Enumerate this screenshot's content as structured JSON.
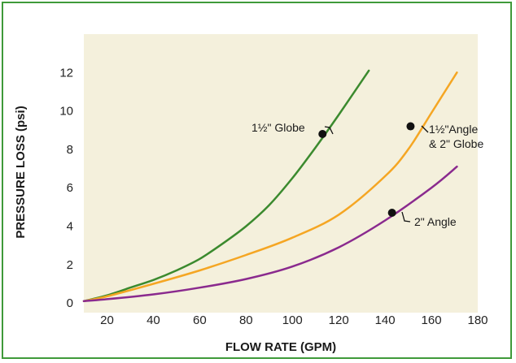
{
  "chart_data": {
    "type": "line",
    "title": "",
    "xlabel": "FLOW RATE (GPM)",
    "ylabel": "PRESSURE LOSS (psi)",
    "xlim": [
      10,
      180
    ],
    "ylim": [
      -0.5,
      14
    ],
    "xticks": [
      20,
      40,
      60,
      80,
      100,
      120,
      140,
      160,
      180
    ],
    "yticks": [
      0,
      2,
      4,
      6,
      8,
      10,
      12
    ],
    "grid": false,
    "background": "#f4f0dc",
    "series": [
      {
        "name": "1½\" Globe",
        "color": "#3b8a2e",
        "x": [
          10,
          20,
          30,
          40,
          50,
          60,
          70,
          80,
          90,
          100,
          110,
          120,
          133
        ],
        "y": [
          0.1,
          0.4,
          0.8,
          1.2,
          1.7,
          2.3,
          3.1,
          4.0,
          5.1,
          6.5,
          8.1,
          9.8,
          12.1
        ]
      },
      {
        "name": "1½\"Angle & 2\" Globe",
        "color": "#f5a623",
        "x": [
          10,
          20,
          40,
          60,
          80,
          100,
          120,
          140,
          150,
          160,
          171
        ],
        "y": [
          0.1,
          0.35,
          1.0,
          1.7,
          2.5,
          3.4,
          4.6,
          6.6,
          8.0,
          9.9,
          12.0
        ]
      },
      {
        "name": "2\" Angle",
        "color": "#8a2a8e",
        "x": [
          10,
          20,
          40,
          60,
          80,
          100,
          120,
          140,
          160,
          171
        ],
        "y": [
          0.1,
          0.2,
          0.45,
          0.8,
          1.25,
          1.9,
          2.9,
          4.3,
          6.0,
          7.1
        ]
      }
    ],
    "annotations": [
      {
        "lines": [
          "1½\" Globe"
        ],
        "point": [
          113,
          8.8
        ],
        "series": 0
      },
      {
        "lines": [
          "1½\"Angle",
          "& 2\" Globe"
        ],
        "point": [
          151,
          9.2
        ],
        "series": 1
      },
      {
        "lines": [
          "2\" Angle"
        ],
        "point": [
          143,
          4.7
        ],
        "series": 2
      }
    ]
  }
}
